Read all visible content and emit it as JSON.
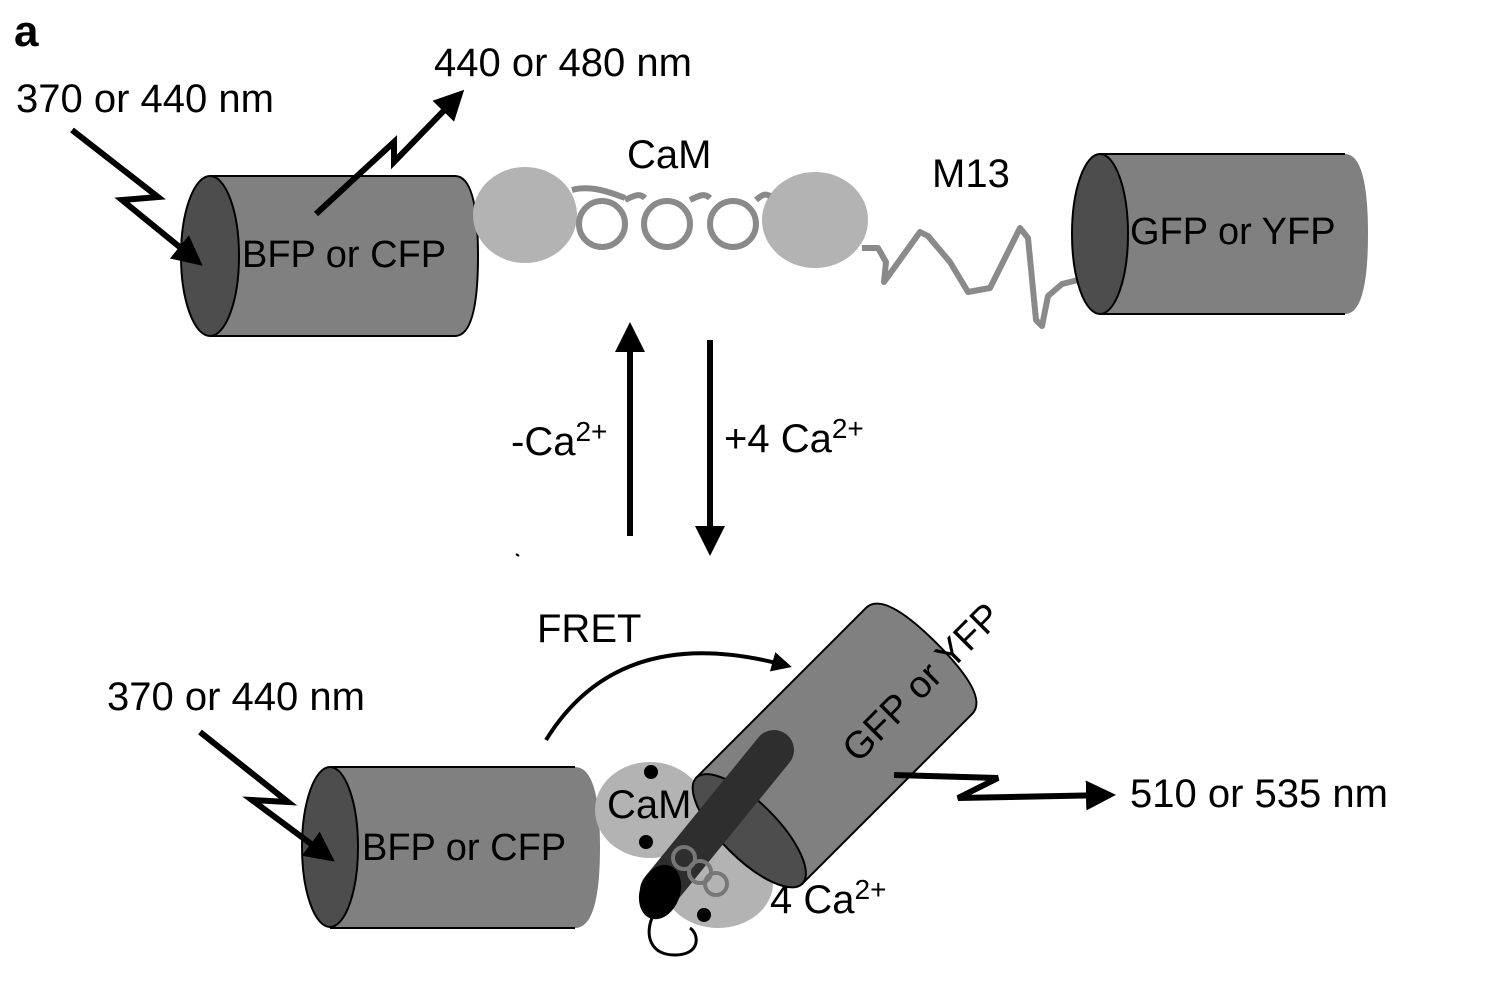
{
  "panel_label": "a",
  "colors": {
    "cylinder_body": "#808080",
    "cylinder_face": "#4d4d4d",
    "cam_lobe": "#b3b3b3",
    "linker": "#8a8a8a",
    "peptide": "#3a3a3a",
    "arrow": "#000000"
  },
  "top_state": {
    "excitation": "370 or 440 nm",
    "emission": "440 or 480 nm",
    "donor": "BFP or CFP",
    "cam": "CaM",
    "peptide": "M13",
    "acceptor": "GFP or YFP"
  },
  "transition": {
    "remove_label": "-Ca",
    "add_label": "+4 Ca",
    "charge": "2+"
  },
  "bottom_state": {
    "fret": "FRET",
    "excitation": "370 or 440 nm",
    "donor": "BFP or CFP",
    "cam": "CaM",
    "acceptor": "GFP or YFP",
    "emission": "510 or 535 nm",
    "calcium_label": "4 Ca",
    "charge": "2+"
  }
}
